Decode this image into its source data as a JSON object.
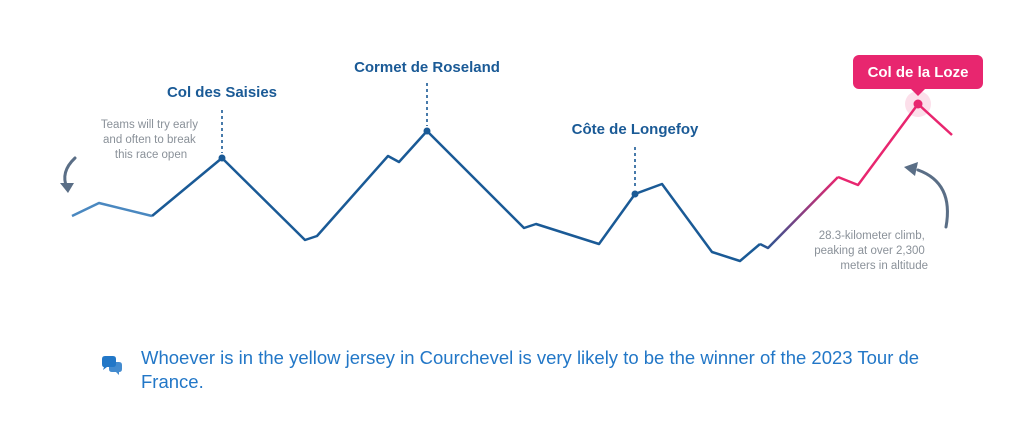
{
  "climbs": [
    {
      "name": "Col des Saisies"
    },
    {
      "name": "Cormet de Roseland"
    },
    {
      "name": "Côte de Longefoy"
    }
  ],
  "final_climb": {
    "name": "Col de la Loze"
  },
  "notes": {
    "left": [
      "Teams will try early",
      "and often to break",
      "this race open"
    ],
    "right": [
      "28.3-kilometer climb,",
      "peaking at over 2,300",
      "meters in altitude"
    ]
  },
  "caption": "Whoever is in the yellow jersey in Courchevel is very likely to be the winner of the 2023 Tour de France.",
  "icons": {
    "caption": "chat-bubbles-icon"
  },
  "colors": {
    "profile": "#1a5a96",
    "profile_start": "#4a88c0",
    "final": "#e8266f",
    "note_arrow": "#5a6e86",
    "caption": "#2277c7"
  }
}
